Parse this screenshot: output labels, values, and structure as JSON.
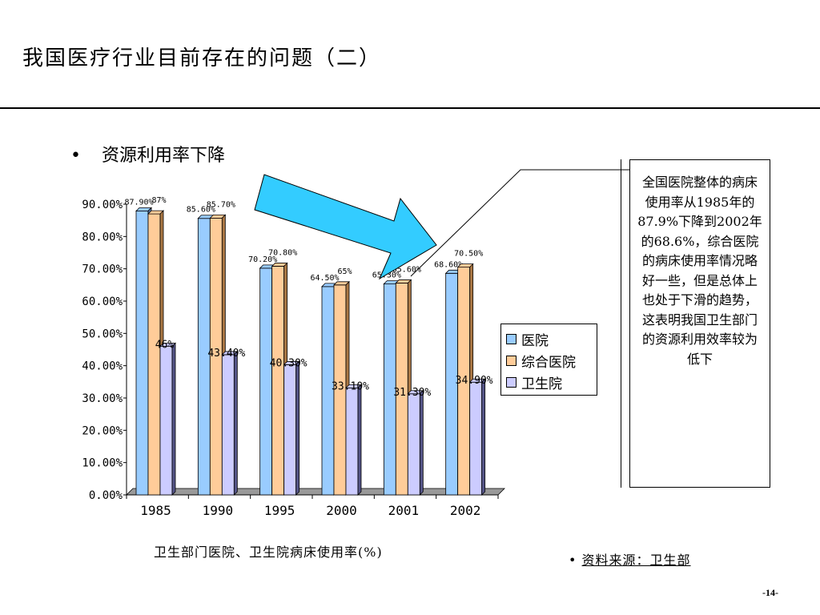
{
  "title": "我国医疗行业目前存在的问题（二）",
  "bullet": {
    "marker": "•",
    "text": "资源利用率下降"
  },
  "callout_text": "全国医院整体的病床使用率从1985年的87.9%下降到2002年的68.6%，综合医院的病床使用率情况略好一些，但是总体上也处于下滑的趋势，这表明我国卫生部门的资源利用效率较为低下",
  "caption": "卫生部门医院、卫生院病床使用率(%)",
  "source": {
    "marker": "•",
    "label": "资料来源：卫生部"
  },
  "page_number": "-14-",
  "colors": {
    "hospital": "#99ccff",
    "general": "#ffcc99",
    "township": "#ccccff",
    "arrow": "#33ccff"
  },
  "chart_data": {
    "type": "bar",
    "categories": [
      "1985",
      "1990",
      "1995",
      "2000",
      "2001",
      "2002"
    ],
    "ylim": [
      0,
      90
    ],
    "yticks": [
      "0.00%",
      "10.00%",
      "20.00%",
      "30.00%",
      "40.00%",
      "50.00%",
      "60.00%",
      "70.00%",
      "80.00%",
      "90.00%"
    ],
    "legend_position": "right",
    "series": [
      {
        "name": "医院",
        "values": [
          87.9,
          85.6,
          70.2,
          64.5,
          65.3,
          68.6
        ],
        "labels": [
          "87.90%",
          "85.60%",
          "70.20%",
          "64.50%",
          "65.30%",
          "68.60%"
        ]
      },
      {
        "name": "综合医院",
        "values": [
          87,
          85.7,
          70.8,
          65,
          65.6,
          70.5
        ],
        "labels": [
          "87%",
          "85.70%",
          "70.80%",
          "65%",
          "65.60%",
          "70.50%"
        ]
      },
      {
        "name": "卫生院",
        "values": [
          46,
          43.4,
          40.3,
          33.1,
          31.3,
          34.9
        ],
        "labels": [
          "46%",
          "43.40%",
          "40.30%",
          "33.10%",
          "31.30%",
          "34.90%"
        ]
      }
    ]
  }
}
